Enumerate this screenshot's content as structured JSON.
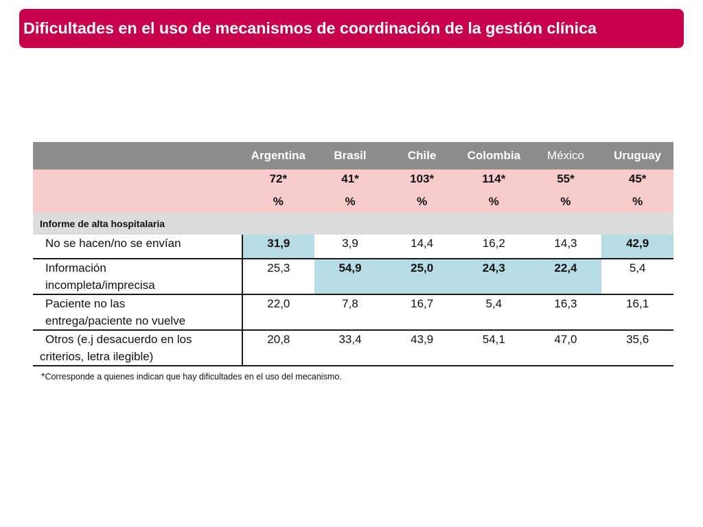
{
  "title": "Dificultades en el uso de mecanismos de coordinación de la gestión clínica",
  "colors": {
    "title_bg": "#c8004b",
    "header_bg": "#8c8c8c",
    "n_row_bg": "#f9cccc",
    "section_bg": "#dcdcdc",
    "highlight": "#b8dce3"
  },
  "chart_data": {
    "type": "table",
    "columns": [
      "Argentina",
      "Brasil",
      "Chile",
      "Colombia",
      "México",
      "Uruguay"
    ],
    "n": [
      "72*",
      "41*",
      "103*",
      "114*",
      "55*",
      "45*"
    ],
    "unit_row": [
      "%",
      "%",
      "%",
      "%",
      "%",
      "%"
    ],
    "section": "Informe de alta hospitalaria",
    "rows": [
      {
        "label": [
          "No se hacen/no se envían"
        ],
        "values": [
          "31,9",
          "3,9",
          "14,4",
          "16,2",
          "14,3",
          "42,9"
        ]
      },
      {
        "label": [
          "Información",
          "incompleta/imprecisa"
        ],
        "values": [
          "25,3",
          "54,9",
          "25,0",
          "24,3",
          "22,4",
          "5,4"
        ]
      },
      {
        "label": [
          "Paciente no las",
          "entrega/paciente no vuelve"
        ],
        "values": [
          "22,0",
          "7,8",
          "16,7",
          "5,4",
          "16,3",
          "16,1"
        ]
      },
      {
        "label": [
          "Otros (e.j desacuerdo en los",
          "criterios, letra ilegible)"
        ],
        "values": [
          "20,8",
          "33,4",
          "43,9",
          "54,1",
          "47,0",
          "35,6"
        ]
      }
    ],
    "highlighted_cells": [
      [
        0,
        0
      ],
      [
        0,
        5
      ],
      [
        1,
        1
      ],
      [
        1,
        2
      ],
      [
        1,
        3
      ],
      [
        1,
        4
      ]
    ]
  },
  "footnote": {
    "marker": "*",
    "text": "Corresponde a quienes indican que hay dificultades en el uso del mecanismo."
  }
}
